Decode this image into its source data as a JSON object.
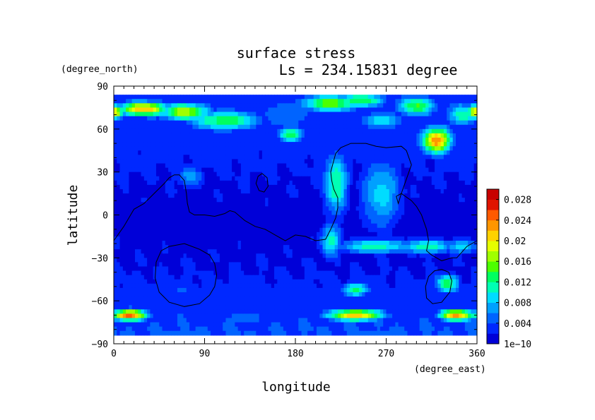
{
  "chart_data": {
    "type": "heatmap",
    "title": "surface stress",
    "subtitle": "Ls = 234.15831 degree",
    "xlabel": "longitude",
    "ylabel": "latitude",
    "x_units": "(degree_east)",
    "y_units": "(degree_north)",
    "xlim": [
      0,
      360
    ],
    "ylim": [
      -90,
      90
    ],
    "x_ticks": [
      0,
      90,
      180,
      270,
      360
    ],
    "y_ticks": [
      90,
      60,
      30,
      0,
      -30,
      -60,
      -90
    ],
    "x_tick_labels": [
      "0",
      "90",
      "180",
      "270",
      "360"
    ],
    "y_tick_labels": [
      "90",
      "60",
      "30",
      "0",
      "−30",
      "−60",
      "−90"
    ],
    "colorbar": {
      "min": 0,
      "max": 0.03,
      "tick_values": [
        0,
        0.004,
        0.008,
        0.012,
        0.016,
        0.02,
        0.024,
        0.028
      ],
      "tick_labels": [
        "1e−10",
        "0.004",
        "0.008",
        "0.012",
        "0.016",
        "0.02",
        "0.024",
        "0.028"
      ],
      "colors": [
        "#0000d8",
        "#0028ff",
        "#0064ff",
        "#00a0ff",
        "#00dcff",
        "#00ffb4",
        "#00ff60",
        "#4cff00",
        "#a0ff00",
        "#e6ff00",
        "#ffd200",
        "#ff9600",
        "#ff5a00",
        "#e01400",
        "#c80000"
      ]
    },
    "grid": false,
    "legend": "colorbar-right",
    "features": [
      {
        "lon": 0,
        "lat": 72,
        "value": 0.022,
        "sl": 10,
        "st": 5
      },
      {
        "lon": 30,
        "lat": 74,
        "value": 0.022,
        "sl": 25,
        "st": 5
      },
      {
        "lon": 70,
        "lat": 72,
        "value": 0.018,
        "sl": 25,
        "st": 6
      },
      {
        "lon": 110,
        "lat": 66,
        "value": 0.014,
        "sl": 35,
        "st": 7
      },
      {
        "lon": 175,
        "lat": 56,
        "value": 0.014,
        "sl": 12,
        "st": 6
      },
      {
        "lon": 170,
        "lat": 70,
        "value": 0.006,
        "sl": 30,
        "st": 12
      },
      {
        "lon": 215,
        "lat": 78,
        "value": 0.016,
        "sl": 30,
        "st": 6
      },
      {
        "lon": 245,
        "lat": 80,
        "value": 0.014,
        "sl": 25,
        "st": 5
      },
      {
        "lon": 265,
        "lat": 66,
        "value": 0.01,
        "sl": 20,
        "st": 6
      },
      {
        "lon": 300,
        "lat": 76,
        "value": 0.014,
        "sl": 20,
        "st": 7
      },
      {
        "lon": 320,
        "lat": 52,
        "value": 0.024,
        "sl": 14,
        "st": 9
      },
      {
        "lon": 345,
        "lat": 70,
        "value": 0.012,
        "sl": 14,
        "st": 8
      },
      {
        "lon": 220,
        "lat": 22,
        "value": 0.012,
        "sl": 12,
        "st": 22
      },
      {
        "lon": 215,
        "lat": -18,
        "value": 0.011,
        "sl": 10,
        "st": 12
      },
      {
        "lon": 265,
        "lat": 15,
        "value": 0.009,
        "sl": 20,
        "st": 25
      },
      {
        "lon": 260,
        "lat": -22,
        "value": 0.011,
        "sl": 40,
        "st": 5
      },
      {
        "lon": 310,
        "lat": -22,
        "value": 0.012,
        "sl": 25,
        "st": 5
      },
      {
        "lon": 345,
        "lat": -22,
        "value": 0.01,
        "sl": 15,
        "st": 5
      },
      {
        "lon": 75,
        "lat": 27,
        "value": 0.007,
        "sl": 14,
        "st": 8
      },
      {
        "lon": 240,
        "lat": -52,
        "value": 0.013,
        "sl": 14,
        "st": 5
      },
      {
        "lon": 330,
        "lat": -48,
        "value": 0.013,
        "sl": 12,
        "st": 7
      },
      {
        "lon": 15,
        "lat": -70,
        "value": 0.025,
        "sl": 18,
        "st": 4
      },
      {
        "lon": 240,
        "lat": -70,
        "value": 0.022,
        "sl": 28,
        "st": 4
      },
      {
        "lon": 340,
        "lat": -70,
        "value": 0.023,
        "sl": 18,
        "st": 4
      },
      {
        "lon": 130,
        "lat": -72,
        "value": 0.005,
        "sl": 30,
        "st": 6
      },
      {
        "lon": 60,
        "lat": -52,
        "value": 0.004,
        "sl": 40,
        "st": 8
      },
      {
        "lon": 60,
        "lat": -82,
        "value": 0.005,
        "sl": 60,
        "st": 4
      },
      {
        "lon": 260,
        "lat": -82,
        "value": 0.005,
        "sl": 60,
        "st": 4
      }
    ],
    "background": [
      {
        "lat": 80,
        "value": 0.003
      },
      {
        "lat": 60,
        "value": 0.003
      },
      {
        "lat": 40,
        "value": 0.0025
      },
      {
        "lat": 20,
        "value": 0.0018
      },
      {
        "lat": 0,
        "value": 0.0012
      },
      {
        "lat": -20,
        "value": 0.0015
      },
      {
        "lat": -40,
        "value": 0.002
      },
      {
        "lat": -60,
        "value": 0.003
      },
      {
        "lat": -80,
        "value": 0.004
      }
    ],
    "topography_contours": [
      {
        "name": "continent-outline",
        "lon": [
          0,
          10,
          20,
          30,
          40,
          50,
          55,
          60,
          65,
          70,
          72,
          73,
          75,
          80,
          90,
          100,
          110,
          115,
          120,
          130,
          140,
          150,
          160,
          170,
          180,
          190,
          200,
          210,
          215,
          220,
          222,
          222,
          218,
          216,
          215,
          218,
          220,
          225,
          235,
          250,
          260,
          270,
          285,
          290,
          295,
          290,
          285,
          282,
          280,
          285,
          295,
          300,
          305,
          310,
          312,
          310,
          315,
          325,
          335,
          340,
          345,
          350,
          360
        ],
        "lat": [
          -18,
          -8,
          4,
          8,
          15,
          22,
          26,
          28,
          28,
          24,
          15,
          8,
          2,
          0,
          0,
          -1,
          1,
          3,
          2,
          -4,
          -8,
          -10,
          -14,
          -18,
          -14,
          -15,
          -18,
          -17,
          -10,
          -2,
          5,
          12,
          18,
          24,
          30,
          38,
          43,
          47,
          50,
          50,
          48,
          47,
          48,
          45,
          35,
          25,
          15,
          8,
          13,
          15,
          10,
          6,
          0,
          -10,
          -18,
          -25,
          -28,
          -32,
          -30,
          -30,
          -26,
          -22,
          -18
        ]
      },
      {
        "name": "crater-hellas",
        "lon": [
          70,
          85,
          95,
          100,
          102,
          100,
          95,
          85,
          70,
          55,
          45,
          41,
          42,
          47,
          55,
          70
        ],
        "lat": [
          -20,
          -24,
          -28,
          -34,
          -42,
          -50,
          -56,
          -62,
          -64,
          -61,
          -54,
          -44,
          -33,
          -25,
          -22,
          -20
        ]
      },
      {
        "name": "crater-argyre",
        "lon": [
          325,
          332,
          335,
          333,
          325,
          316,
          310,
          309,
          312,
          318,
          325
        ],
        "lat": [
          -38,
          -40,
          -46,
          -54,
          -61,
          -62,
          -58,
          -50,
          -43,
          -39,
          -38
        ]
      },
      {
        "name": "crater-small",
        "lon": [
          147,
          152,
          153,
          149,
          144,
          141,
          143,
          147
        ],
        "lat": [
          29,
          26,
          20,
          16,
          17,
          22,
          27,
          29
        ]
      }
    ]
  }
}
